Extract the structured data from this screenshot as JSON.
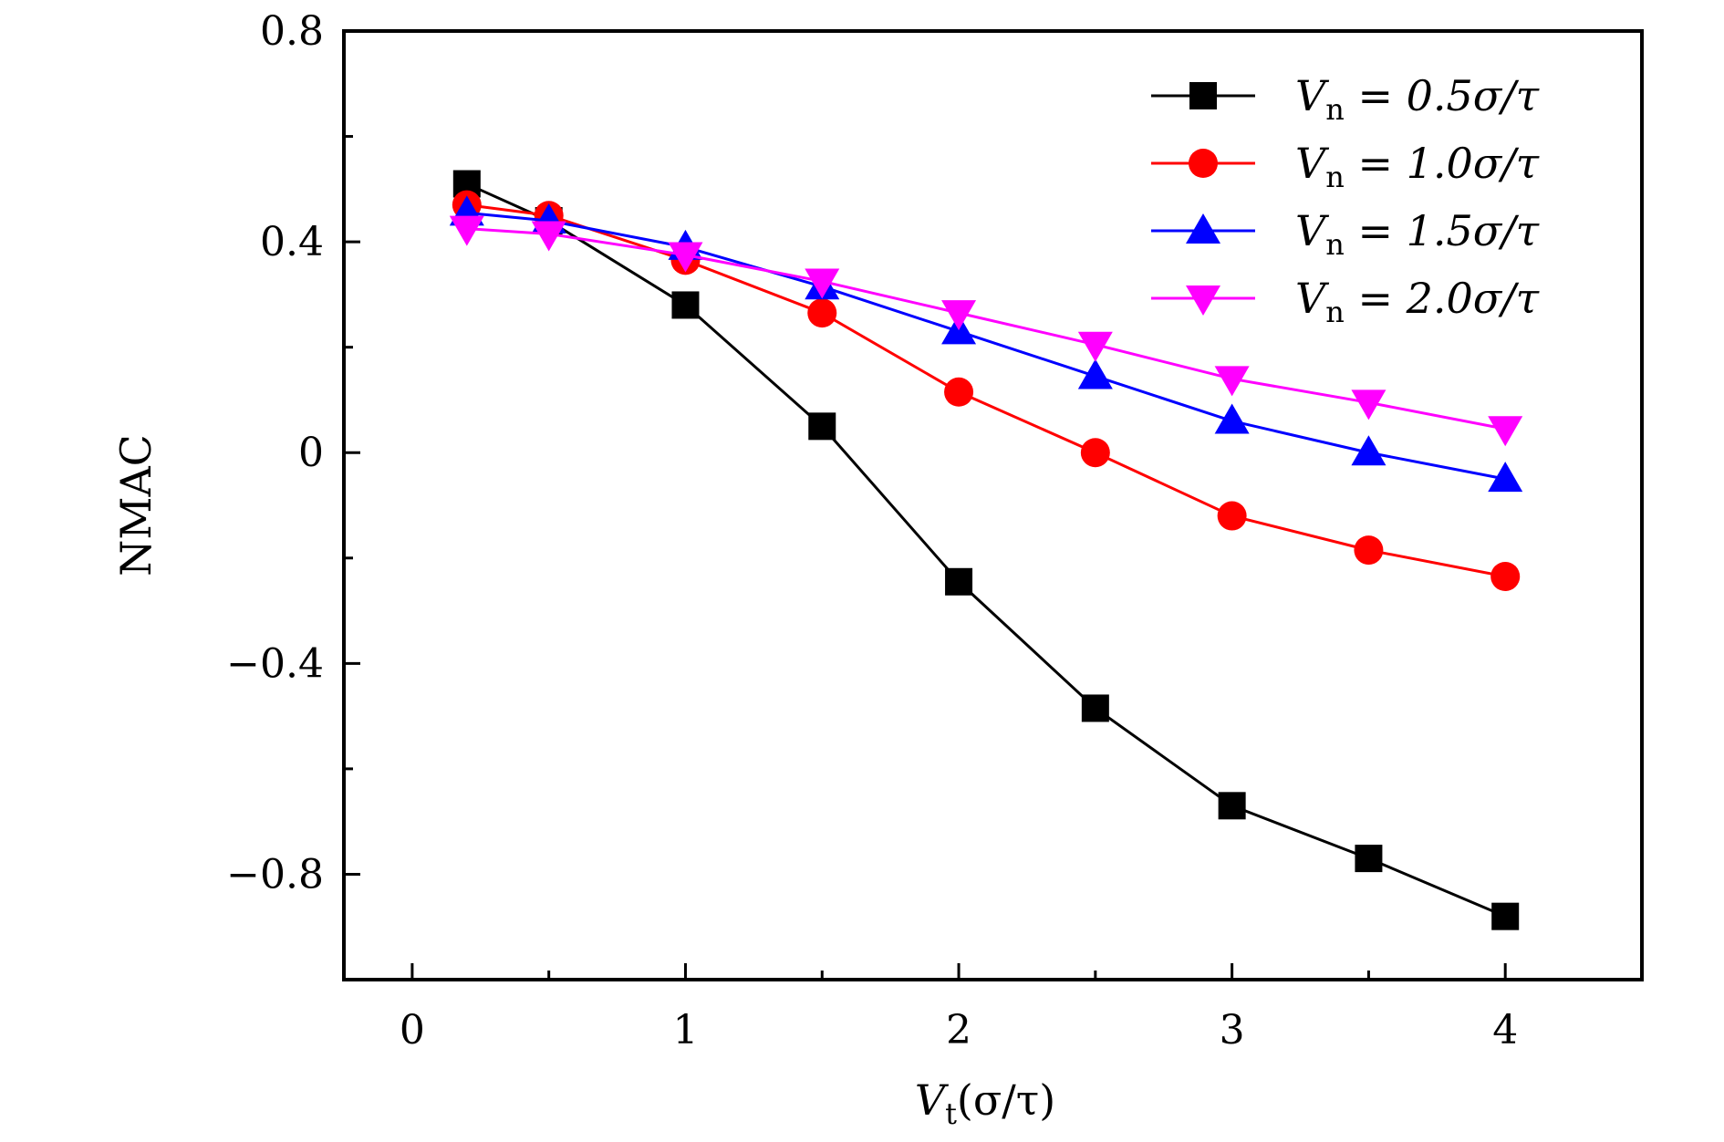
{
  "chart_data": {
    "type": "line",
    "xlabel": "V_t(σ/τ)",
    "xlabel_parts": {
      "main": "V",
      "sub": "t",
      "rest": "(σ/τ)"
    },
    "ylabel": "NMAC",
    "xlim": [
      -0.25,
      4.5
    ],
    "ylim": [
      -1.0,
      0.8
    ],
    "xticks": [
      0,
      1,
      2,
      3,
      4
    ],
    "xtick_labels": [
      "0",
      "1",
      "2",
      "3",
      "4"
    ],
    "yticks": [
      0.8,
      0.4,
      0,
      -0.4,
      -0.8
    ],
    "ytick_labels": [
      "0.8",
      "0.4",
      "0",
      "−0.4",
      "−0.8"
    ],
    "grid": false,
    "legend_position": "top-right",
    "x": [
      0.2,
      0.5,
      1.0,
      1.5,
      2.0,
      2.5,
      3.0,
      3.5,
      4.0
    ],
    "series": [
      {
        "name": "Vn = 0.5σ/τ",
        "name_parts": {
          "main": "V",
          "sub": "n",
          "rest": " = 0.5σ/τ"
        },
        "color": "#000000",
        "marker": "square",
        "values": [
          0.51,
          0.44,
          0.28,
          0.05,
          -0.245,
          -0.485,
          -0.67,
          -0.77,
          -0.88
        ]
      },
      {
        "name": "Vn = 1.0σ/τ",
        "name_parts": {
          "main": "V",
          "sub": "n",
          "rest": " = 1.0σ/τ"
        },
        "color": "#ff0000",
        "marker": "circle",
        "values": [
          0.47,
          0.45,
          0.365,
          0.265,
          0.115,
          0.0,
          -0.12,
          -0.185,
          -0.235
        ]
      },
      {
        "name": "Vn = 1.5σ/τ",
        "name_parts": {
          "main": "V",
          "sub": "n",
          "rest": " = 1.5σ/τ"
        },
        "color": "#0000ff",
        "marker": "triangle-up",
        "values": [
          0.455,
          0.44,
          0.39,
          0.315,
          0.23,
          0.145,
          0.06,
          0.0,
          -0.05
        ]
      },
      {
        "name": "Vn = 2.0σ/τ",
        "name_parts": {
          "main": "V",
          "sub": "n",
          "rest": " = 2.0σ/τ"
        },
        "color": "#ff00ff",
        "marker": "triangle-down",
        "values": [
          0.425,
          0.415,
          0.375,
          0.325,
          0.265,
          0.205,
          0.14,
          0.095,
          0.045
        ]
      }
    ]
  }
}
